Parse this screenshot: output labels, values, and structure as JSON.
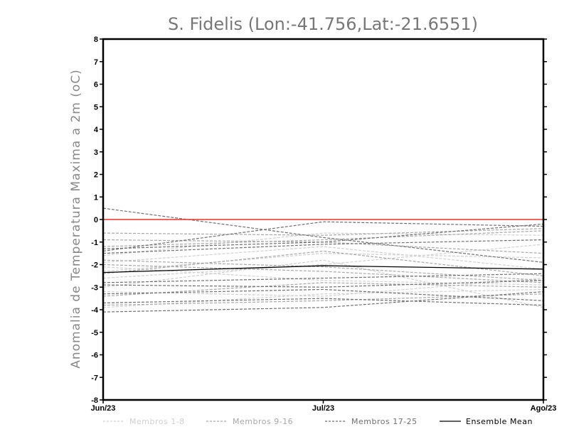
{
  "chart_data": {
    "type": "line",
    "title": "S. Fidelis (Lon:-41.756,Lat:-21.6551)",
    "xlabel": "",
    "ylabel": "Anomalia de Temperatura Maxima a 2m (oC)",
    "categories": [
      "Jun/23",
      "Jul/23",
      "Ago/23"
    ],
    "ylim": [
      -8,
      8
    ],
    "yticks": [
      -8,
      -7,
      -6,
      -5,
      -4,
      -3,
      -2,
      -1,
      0,
      1,
      2,
      3,
      4,
      5,
      6,
      7,
      8
    ],
    "reference_line": {
      "value": 0,
      "color": "#e8342c"
    },
    "legend": {
      "placement": "bottom",
      "entries": [
        {
          "label": "Membros 1-8",
          "color": "#d0d0d0",
          "style": "dashed"
        },
        {
          "label": "Membros 9-16",
          "color": "#a8a8a8",
          "style": "dashed"
        },
        {
          "label": "Membros 17-25",
          "color": "#707070",
          "style": "dashed"
        },
        {
          "label": "Ensemble Mean",
          "color": "#000000",
          "style": "solid"
        }
      ]
    },
    "groups": [
      {
        "label": "Membros 1-8",
        "color": "#d0d0d0",
        "style": "dashed",
        "series": [
          [
            -2.3,
            -1.5,
            -1.7
          ],
          [
            -1.9,
            -1.2,
            -2.2
          ],
          [
            -3.0,
            -1.8,
            -3.9
          ],
          [
            -2.1,
            -2.7,
            -2.9
          ],
          [
            -1.6,
            -0.6,
            -0.7
          ],
          [
            -3.2,
            -3.4,
            -2.6
          ],
          [
            -2.6,
            -2.0,
            -1.1
          ],
          [
            -3.9,
            -3.3,
            -3.1
          ]
        ]
      },
      {
        "label": "Membros 9-16",
        "color": "#a8a8a8",
        "style": "dashed",
        "series": [
          [
            -0.6,
            -0.7,
            -0.4
          ],
          [
            -1.2,
            -0.9,
            -0.5
          ],
          [
            -2.0,
            -2.3,
            -2.8
          ],
          [
            -2.4,
            -1.4,
            -2.5
          ],
          [
            -3.8,
            -3.6,
            -3.3
          ],
          [
            -0.9,
            -1.0,
            -1.5
          ],
          [
            -1.8,
            -2.1,
            -2.7
          ],
          [
            -3.4,
            -2.8,
            -3.0
          ]
        ]
      },
      {
        "label": "Membros 17-25",
        "color": "#707070",
        "style": "dashed",
        "series": [
          [
            0.5,
            -0.8,
            -1.9
          ],
          [
            -1.4,
            -0.1,
            -0.3
          ],
          [
            -1.5,
            -1.1,
            -0.9
          ],
          [
            -2.8,
            -2.6,
            -2.4
          ],
          [
            -3.3,
            -3.1,
            -3.6
          ],
          [
            -4.1,
            -3.9,
            -3.2
          ],
          [
            -3.7,
            -3.5,
            -3.8
          ],
          [
            -2.9,
            -3.0,
            -2.7
          ],
          [
            -1.3,
            -1.0,
            -0.2
          ]
        ]
      }
    ],
    "series": [
      {
        "name": "Ensemble Mean",
        "color": "#000000",
        "style": "solid",
        "values": [
          -2.35,
          -2.05,
          -2.2
        ]
      }
    ]
  }
}
